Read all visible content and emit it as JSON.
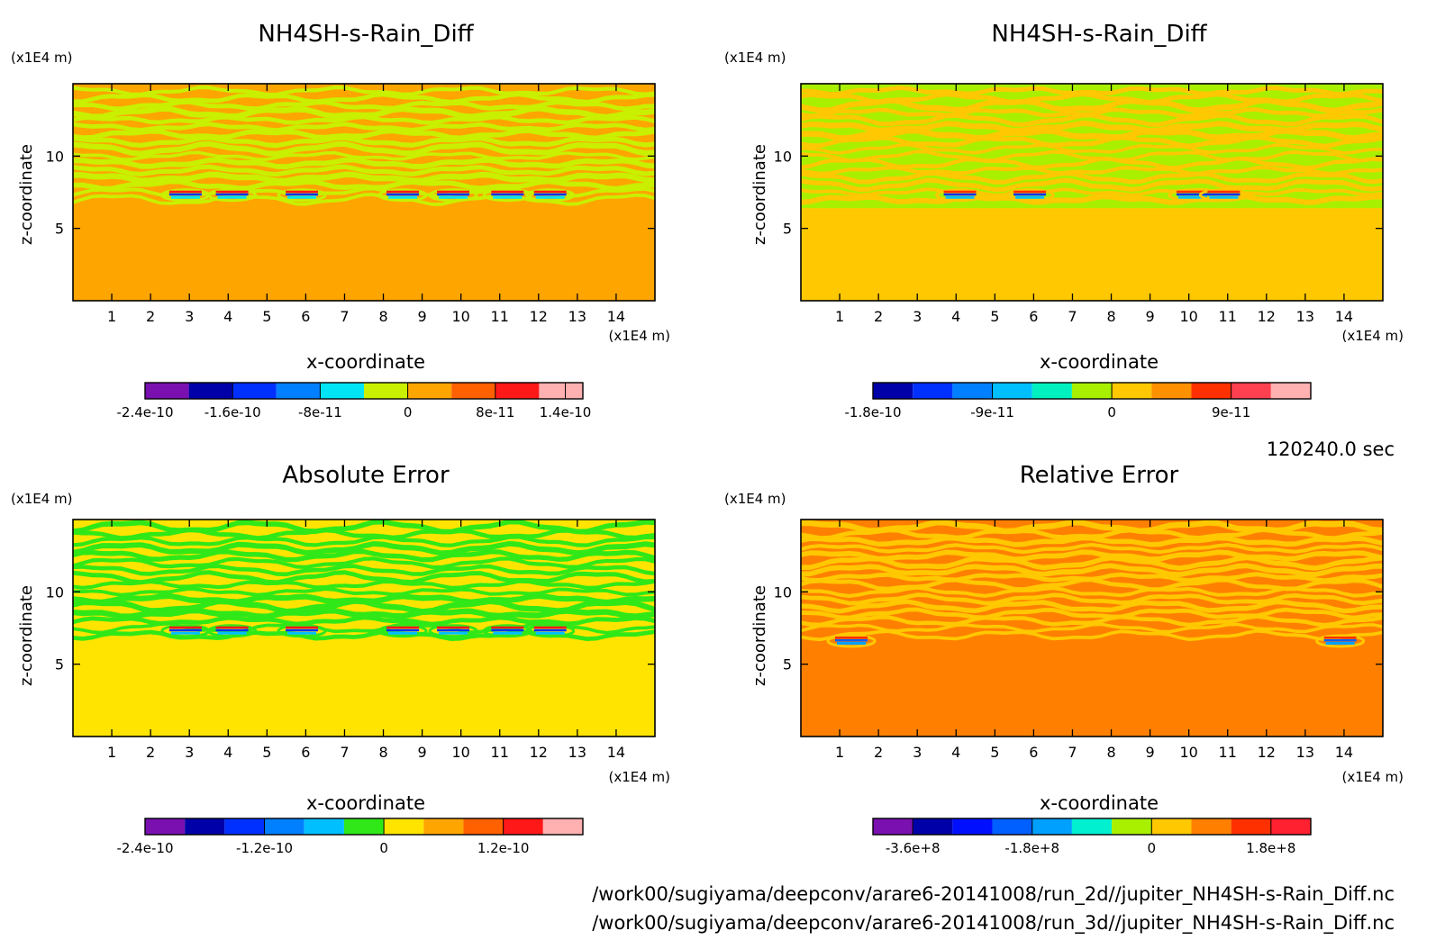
{
  "timestamp": "120240.0 sec",
  "paths": [
    "/work00/sugiyama/deepconv/arare6-20141008/run_2d//jupiter_NH4SH-s-Rain_Diff.nc",
    "/work00/sugiyama/deepconv/arare6-20141008/run_3d//jupiter_NH4SH-s-Rain_Diff.nc"
  ],
  "chart_data": [
    {
      "type": "heatmap",
      "title": "NH4SH-s-Rain_Diff",
      "xlabel": "x-coordinate",
      "ylabel": "z-coordinate",
      "x_unit": "(x1E4 m)",
      "y_unit": "(x1E4 m)",
      "xlim": [
        0,
        15
      ],
      "ylim": [
        0,
        15
      ],
      "x_ticks": [
        "1",
        "2",
        "3",
        "4",
        "5",
        "6",
        "7",
        "8",
        "9",
        "10",
        "11",
        "12",
        "13",
        "14"
      ],
      "y_ticks": [
        "5",
        "10"
      ],
      "colorbar_colors": [
        "#7a10b0",
        "#0000a8",
        "#0030ff",
        "#0080ff",
        "#00e5f5",
        "#c8f000",
        "#ffa500",
        "#ff6000",
        "#ff1818",
        "#ffb0b0"
      ],
      "colorbar_labels": [
        "-2.4e-10",
        "-1.6e-10",
        "-8e-11",
        "0",
        "8e-11",
        "1.4e-10"
      ],
      "colorbar_label_index": [
        0,
        2,
        4,
        6,
        8,
        9.6
      ],
      "colors": {
        "lower": "#ffa500",
        "upper": "#ffa500",
        "stripe": "#c8f000",
        "anomaly_hi": "#ff1818",
        "anomaly_lo": "#00e5f5",
        "anomaly_mid": "#0030ff"
      },
      "anomaly_x": [
        2.9,
        4.1,
        5.9,
        8.5,
        9.8,
        11.2,
        12.3
      ],
      "anomaly_z": 7.3,
      "band_top_z": 6.4
    },
    {
      "type": "heatmap",
      "title": "NH4SH-s-Rain_Diff",
      "xlabel": "x-coordinate",
      "ylabel": "z-coordinate",
      "x_unit": "(x1E4 m)",
      "y_unit": "(x1E4 m)",
      "xlim": [
        0,
        15
      ],
      "ylim": [
        0,
        15
      ],
      "x_ticks": [
        "1",
        "2",
        "3",
        "4",
        "5",
        "6",
        "7",
        "8",
        "9",
        "10",
        "11",
        "12",
        "13",
        "14"
      ],
      "y_ticks": [
        "5",
        "10"
      ],
      "colorbar_colors": [
        "#0000a8",
        "#0030ff",
        "#0080ff",
        "#00bfff",
        "#00f0c0",
        "#a8f000",
        "#ffc800",
        "#ff9000",
        "#ff3000",
        "#ff4050",
        "#ffb0b0"
      ],
      "colorbar_labels": [
        "-1.8e-10",
        "-9e-11",
        "0",
        "9e-11"
      ],
      "colorbar_label_index": [
        0,
        3,
        6,
        9
      ],
      "colors": {
        "lower": "#ffc800",
        "upper": "#a8f000",
        "stripe": "#ffc800",
        "anomaly_hi": "#ff3000",
        "anomaly_lo": "#00bfff",
        "anomaly_mid": "#0030ff"
      },
      "anomaly_x": [
        4.1,
        5.9,
        10.1,
        10.9
      ],
      "anomaly_z": 7.3,
      "band_top_z": 6.4
    },
    {
      "type": "heatmap",
      "title": "Absolute Error",
      "xlabel": "x-coordinate",
      "ylabel": "z-coordinate",
      "x_unit": "(x1E4 m)",
      "y_unit": "(x1E4 m)",
      "xlim": [
        0,
        15
      ],
      "ylim": [
        0,
        15
      ],
      "x_ticks": [
        "1",
        "2",
        "3",
        "4",
        "5",
        "6",
        "7",
        "8",
        "9",
        "10",
        "11",
        "12",
        "13",
        "14"
      ],
      "y_ticks": [
        "5",
        "10"
      ],
      "colorbar_colors": [
        "#7a10b0",
        "#0000a8",
        "#0030ff",
        "#0080ff",
        "#00bfff",
        "#30e818",
        "#ffe400",
        "#ffa500",
        "#ff6000",
        "#ff1818",
        "#ffb0b0"
      ],
      "colorbar_labels": [
        "-2.4e-10",
        "-1.2e-10",
        "0",
        "1.2e-10"
      ],
      "colorbar_label_index": [
        0,
        3,
        6,
        9
      ],
      "colors": {
        "lower": "#ffe400",
        "upper": "#ffe400",
        "stripe": "#30e818",
        "anomaly_hi": "#ff1818",
        "anomaly_lo": "#00bfff",
        "anomaly_mid": "#0030ff"
      },
      "anomaly_x": [
        2.9,
        4.1,
        5.9,
        8.5,
        9.8,
        11.2,
        12.3
      ],
      "anomaly_z": 7.3,
      "band_top_z": 6.4
    },
    {
      "type": "heatmap",
      "title": "Relative Error",
      "xlabel": "x-coordinate",
      "ylabel": "z-coordinate",
      "x_unit": "(x1E4 m)",
      "y_unit": "(x1E4 m)",
      "xlim": [
        0,
        15
      ],
      "ylim": [
        0,
        15
      ],
      "x_ticks": [
        "1",
        "2",
        "3",
        "4",
        "5",
        "6",
        "7",
        "8",
        "9",
        "10",
        "11",
        "12",
        "13",
        "14"
      ],
      "y_ticks": [
        "5",
        "10"
      ],
      "colorbar_colors": [
        "#7a10b0",
        "#0000a8",
        "#0010ff",
        "#0060ff",
        "#00a0ff",
        "#00f0d0",
        "#a8f000",
        "#ffc800",
        "#ff8000",
        "#ff3000",
        "#ff2030"
      ],
      "colorbar_labels": [
        "-3.6e+8",
        "-1.8e+8",
        "0",
        "1.8e+8"
      ],
      "colorbar_label_index": [
        1,
        4,
        7,
        10
      ],
      "colors": {
        "lower": "#ff8000",
        "upper": "#ff8000",
        "stripe": "#ffc800",
        "anomaly_hi": "#ff3000",
        "anomaly_lo": "#00a0ff",
        "anomaly_mid": "#0060ff"
      },
      "anomaly_x": [
        1.3,
        13.9
      ],
      "anomaly_z": 6.6,
      "band_top_z": 6.4
    }
  ]
}
